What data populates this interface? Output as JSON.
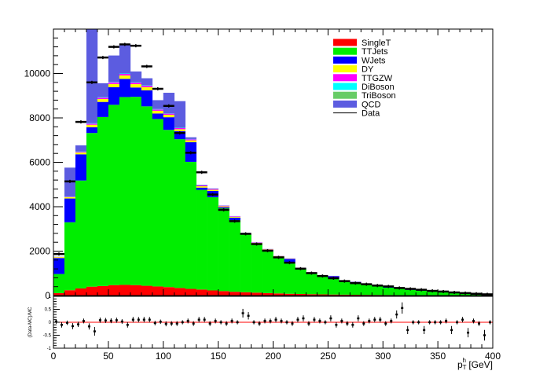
{
  "chart_data": [
    {
      "type": "bar",
      "stacked": true,
      "x_bin_edges": [
        0,
        10,
        20,
        30,
        40,
        50,
        60,
        70,
        80,
        90,
        100,
        110,
        120,
        130,
        140,
        150,
        160,
        170,
        180,
        190,
        200,
        210,
        220,
        230,
        240,
        250,
        260,
        270,
        280,
        290,
        300,
        310,
        320,
        330,
        340,
        350,
        360,
        370,
        380,
        390,
        400
      ],
      "series": [
        {
          "name": "SingleT",
          "color": "#ff0000",
          "values": [
            110,
            240,
            320,
            400,
            430,
            470,
            480,
            470,
            440,
            410,
            380,
            340,
            300,
            270,
            230,
            200,
            170,
            150,
            130,
            110,
            95,
            80,
            70,
            60,
            52,
            45,
            40,
            35,
            30,
            27,
            24,
            21,
            18,
            16,
            14,
            12,
            10,
            9,
            8,
            7
          ]
        },
        {
          "name": "TTJets",
          "color": "#00ee00",
          "values": [
            860,
            3060,
            4860,
            6920,
            7610,
            8120,
            8460,
            8480,
            8080,
            7540,
            7080,
            6700,
            5720,
            4490,
            4200,
            3730,
            3220,
            2600,
            2200,
            1920,
            1640,
            1370,
            1140,
            960,
            800,
            710,
            620,
            530,
            450,
            390,
            330,
            280,
            240,
            200,
            170,
            140,
            110,
            95,
            80,
            68
          ]
        },
        {
          "name": "WJets",
          "color": "#0000ff",
          "values": [
            720,
            1070,
            1180,
            260,
            680,
            790,
            820,
            420,
            720,
            250,
            570,
            360,
            890,
            100,
            280,
            50,
            120,
            20,
            20,
            30,
            20,
            200,
            20,
            20,
            20,
            120,
            20,
            50,
            20,
            20,
            20,
            20,
            20,
            10,
            10,
            10,
            10,
            10,
            5,
            5
          ]
        },
        {
          "name": "DY",
          "color": "#ffff00",
          "values": [
            40,
            60,
            80,
            110,
            130,
            150,
            150,
            150,
            140,
            120,
            110,
            90,
            80,
            60,
            50,
            40,
            35,
            30,
            25,
            20,
            15,
            12,
            10,
            8,
            6,
            5,
            4,
            3,
            3,
            2,
            2,
            2,
            1,
            1,
            1,
            1,
            1,
            1,
            1,
            1
          ]
        },
        {
          "name": "TTGZW",
          "color": "#ff00ff",
          "values": [
            10,
            20,
            30,
            50,
            60,
            70,
            70,
            70,
            65,
            60,
            55,
            50,
            45,
            40,
            35,
            30,
            25,
            20,
            18,
            15,
            12,
            10,
            8,
            7,
            6,
            5,
            4,
            4,
            3,
            3,
            2,
            2,
            2,
            2,
            1,
            1,
            1,
            1,
            1,
            1
          ]
        },
        {
          "name": "DiBoson",
          "color": "#00ffff",
          "values": [
            5,
            10,
            15,
            20,
            20,
            20,
            20,
            20,
            20,
            18,
            16,
            14,
            12,
            10,
            9,
            8,
            7,
            6,
            5,
            4,
            4,
            3,
            3,
            2,
            2,
            2,
            2,
            1,
            1,
            1,
            1,
            1,
            1,
            1,
            1,
            1,
            1,
            1,
            1,
            1
          ]
        },
        {
          "name": "TriBoson",
          "color": "#66cc66",
          "values": [
            1,
            1,
            1,
            1,
            1,
            1,
            1,
            1,
            1,
            1,
            1,
            1,
            1,
            1,
            1,
            1,
            1,
            1,
            1,
            1,
            1,
            1,
            1,
            1,
            1,
            1,
            1,
            1,
            1,
            1,
            1,
            1,
            1,
            1,
            1,
            1,
            1,
            1,
            1,
            1
          ]
        },
        {
          "name": "QCD",
          "color": "#5c5ce0",
          "values": [
            0,
            1300,
            280,
            4800,
            630,
            1190,
            1330,
            480,
            320,
            400,
            920,
            1200,
            80,
            20,
            20,
            0,
            0,
            0,
            0,
            0,
            0,
            0,
            0,
            0,
            0,
            0,
            0,
            0,
            0,
            0,
            0,
            0,
            0,
            0,
            0,
            0,
            0,
            0,
            0,
            0
          ]
        }
      ],
      "data_series": {
        "name": "Data",
        "values": [
          1870,
          5140,
          7820,
          9600,
          10720,
          11200,
          11310,
          11250,
          10320,
          9310,
          8540,
          7320,
          6430,
          5550,
          4550,
          3860,
          3350,
          2780,
          2320,
          2020,
          1720,
          1480,
          1210,
          1010,
          880,
          780,
          650,
          560,
          510,
          450,
          410,
          340,
          300,
          260,
          210,
          180,
          140,
          110,
          80,
          55
        ]
      },
      "legend": [
        "SingleT",
        "TTJets",
        "WJets",
        "DY",
        "TTGZW",
        "DiBoson",
        "TriBoson",
        "QCD",
        "Data"
      ],
      "legend_placement": "top-right",
      "y_tick_labels": [
        "0",
        "2000",
        "4000",
        "6000",
        "8000",
        "10000"
      ],
      "ylim": [
        0,
        12000
      ],
      "xlim": [
        0,
        400
      ]
    },
    {
      "type": "scatter",
      "ylabel": "(Data-MC)/MC",
      "xlabel": "p_T^h [GeV]",
      "xlim": [
        0,
        400
      ],
      "ylim": [
        -1,
        1
      ],
      "x_tick_labels": [
        "0",
        "50",
        "100",
        "150",
        "200",
        "250",
        "300",
        "350",
        "400"
      ],
      "y_tick_labels": [
        "-1",
        "-0.5",
        "0",
        "0.5",
        "1"
      ],
      "reference_line": {
        "y": 0,
        "color": "#ff0000"
      },
      "points": [
        {
          "x": 2.5,
          "y": 0.03
        },
        {
          "x": 7.5,
          "y": -0.1
        },
        {
          "x": 12.5,
          "y": -0.02
        },
        {
          "x": 17.5,
          "y": -0.15
        },
        {
          "x": 22.5,
          "y": -0.08
        },
        {
          "x": 27.5,
          "y": 0.05
        },
        {
          "x": 32.5,
          "y": -0.16
        },
        {
          "x": 37.5,
          "y": -0.35
        },
        {
          "x": 42.5,
          "y": 0.08
        },
        {
          "x": 47.5,
          "y": 0.07
        },
        {
          "x": 52.5,
          "y": 0.06
        },
        {
          "x": 57.5,
          "y": 0.08
        },
        {
          "x": 62.5,
          "y": 0.03
        },
        {
          "x": 67.5,
          "y": -0.1
        },
        {
          "x": 72.5,
          "y": 0.1
        },
        {
          "x": 77.5,
          "y": 0.1
        },
        {
          "x": 82.5,
          "y": 0.1
        },
        {
          "x": 87.5,
          "y": 0.1
        },
        {
          "x": 92.5,
          "y": -0.03
        },
        {
          "x": 97.5,
          "y": 0.02
        },
        {
          "x": 102.5,
          "y": -0.06
        },
        {
          "x": 107.5,
          "y": -0.05
        },
        {
          "x": 112.5,
          "y": -0.05
        },
        {
          "x": 117.5,
          "y": 0.0
        },
        {
          "x": 122.5,
          "y": 0.05
        },
        {
          "x": 127.5,
          "y": -0.05
        },
        {
          "x": 132.5,
          "y": 0.1
        },
        {
          "x": 137.5,
          "y": 0.1
        },
        {
          "x": 142.5,
          "y": -0.05
        },
        {
          "x": 147.5,
          "y": 0.05
        },
        {
          "x": 152.5,
          "y": 0.0
        },
        {
          "x": 157.5,
          "y": -0.05
        },
        {
          "x": 162.5,
          "y": 0.05
        },
        {
          "x": 167.5,
          "y": 0.0
        },
        {
          "x": 172.5,
          "y": 0.35
        },
        {
          "x": 177.5,
          "y": 0.25
        },
        {
          "x": 182.5,
          "y": 0.0
        },
        {
          "x": 187.5,
          "y": -0.05
        },
        {
          "x": 192.5,
          "y": 0.05
        },
        {
          "x": 197.5,
          "y": 0.05
        },
        {
          "x": 202.5,
          "y": 0.1
        },
        {
          "x": 207.5,
          "y": 0.05
        },
        {
          "x": 212.5,
          "y": 0.0
        },
        {
          "x": 217.5,
          "y": -0.05
        },
        {
          "x": 222.5,
          "y": 0.1
        },
        {
          "x": 227.5,
          "y": 0.15
        },
        {
          "x": 232.5,
          "y": -0.05
        },
        {
          "x": 237.5,
          "y": 0.1
        },
        {
          "x": 242.5,
          "y": 0.05
        },
        {
          "x": 247.5,
          "y": 0.0
        },
        {
          "x": 252.5,
          "y": 0.15
        },
        {
          "x": 257.5,
          "y": -0.1
        },
        {
          "x": 262.5,
          "y": 0.05
        },
        {
          "x": 267.5,
          "y": -0.05
        },
        {
          "x": 272.5,
          "y": -0.1
        },
        {
          "x": 277.5,
          "y": 0.15
        },
        {
          "x": 282.5,
          "y": -0.05
        },
        {
          "x": 287.5,
          "y": 0.05
        },
        {
          "x": 292.5,
          "y": 0.1
        },
        {
          "x": 297.5,
          "y": 0.1
        },
        {
          "x": 302.5,
          "y": -0.05
        },
        {
          "x": 307.5,
          "y": 0.05
        },
        {
          "x": 312.5,
          "y": 0.3
        },
        {
          "x": 317.5,
          "y": 0.55
        },
        {
          "x": 322.5,
          "y": -0.3
        },
        {
          "x": 327.5,
          "y": 0.0
        },
        {
          "x": 332.5,
          "y": 0.0
        },
        {
          "x": 337.5,
          "y": -0.3
        },
        {
          "x": 342.5,
          "y": 0.0
        },
        {
          "x": 347.5,
          "y": 0.0
        },
        {
          "x": 352.5,
          "y": 0.0
        },
        {
          "x": 357.5,
          "y": 0.05
        },
        {
          "x": 362.5,
          "y": -0.3
        },
        {
          "x": 367.5,
          "y": 0.0
        },
        {
          "x": 372.5,
          "y": 0.1
        },
        {
          "x": 377.5,
          "y": -0.4
        },
        {
          "x": 382.5,
          "y": 0.05
        },
        {
          "x": 387.5,
          "y": -0.05
        },
        {
          "x": 392.5,
          "y": -0.5
        },
        {
          "x": 397.5,
          "y": 0.0
        }
      ]
    }
  ]
}
